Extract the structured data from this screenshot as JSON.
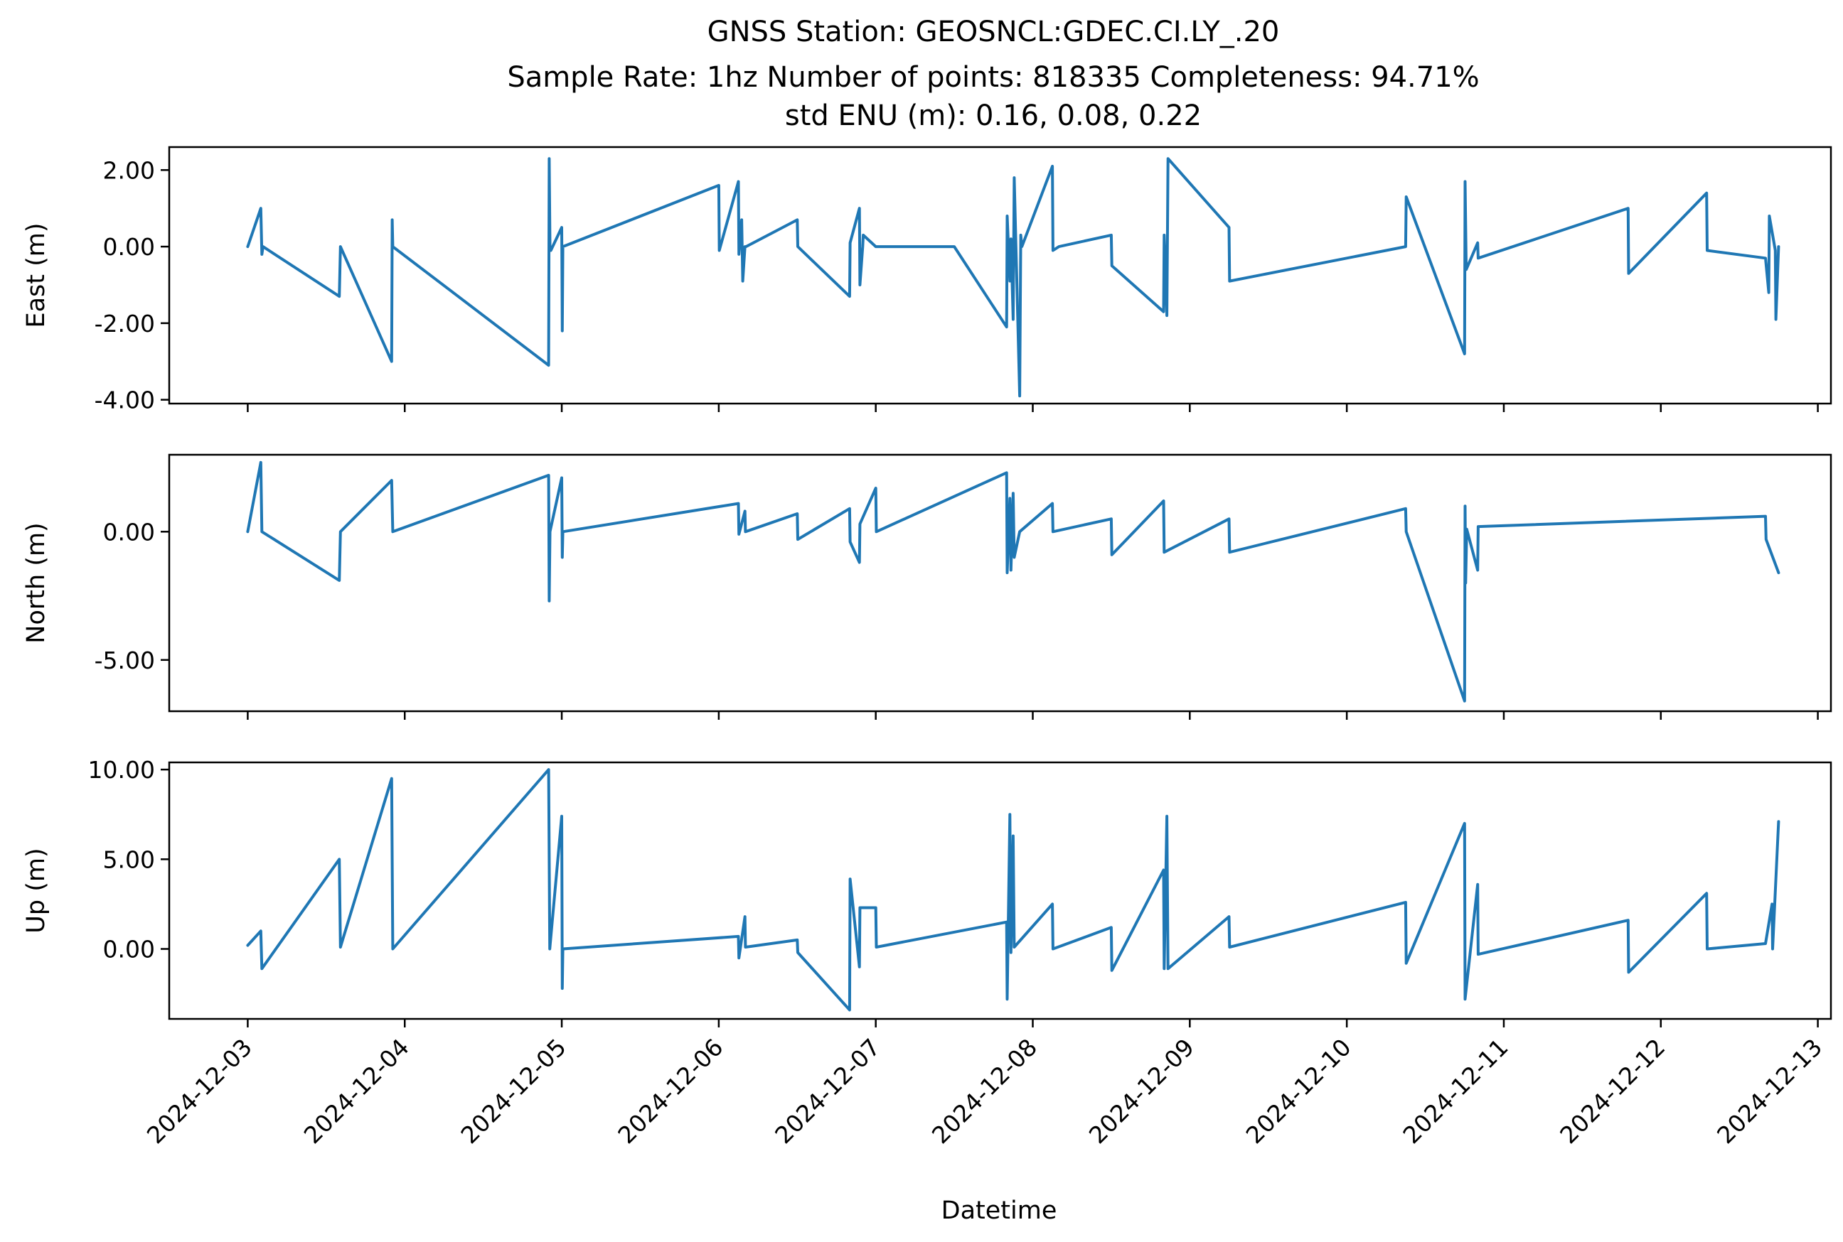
{
  "title_lines": [
    "GNSS Station: GEOSNCL:GDEC.CI.LY_.20",
    "Sample Rate: 1hz   Number of points: 818335    Completeness:  94.71%",
    "std ENU (m):  0.16, 0.08, 0.22"
  ],
  "xlabel": "Datetime",
  "colors": {
    "series": "#1f77b4",
    "axes": "#000000"
  },
  "chart_data": {
    "type": "line",
    "x_unit": "days",
    "xlim": [
      "2024-12-02 12:00",
      "2024-12-13 02:00"
    ],
    "x_ticks": [
      "2024-12-03",
      "2024-12-04",
      "2024-12-05",
      "2024-12-06",
      "2024-12-07",
      "2024-12-08",
      "2024-12-09",
      "2024-12-10",
      "2024-12-11",
      "2024-12-12",
      "2024-12-13"
    ],
    "panels": [
      {
        "ylabel": "East (m)",
        "ylim": [
          -4.1,
          2.6
        ],
        "yticks": [
          2.0,
          0.0,
          -2.0,
          -4.0
        ],
        "ytick_labels": [
          "2.00",
          "0.00",
          "-2.00",
          "-4.00"
        ],
        "series": [
          {
            "name": "",
            "x": [
              "2024-12-03 00:00",
              "2024-12-03 02:00",
              "2024-12-03 02:10",
              "2024-12-03 02:20",
              "2024-12-03 14:00",
              "2024-12-03 14:10",
              "2024-12-03 22:00",
              "2024-12-03 22:05",
              "2024-12-03 22:10",
              "2024-12-04 22:00",
              "2024-12-04 22:05",
              "2024-12-04 22:12",
              "2024-12-04 22:20",
              "2024-12-05 00:00",
              "2024-12-05 00:05",
              "2024-12-05 00:10",
              "2024-12-06 00:00",
              "2024-12-06 00:05",
              "2024-12-06 03:00",
              "2024-12-06 03:05",
              "2024-12-06 03:30",
              "2024-12-06 03:40",
              "2024-12-06 04:00",
              "2024-12-06 04:10",
              "2024-12-06 12:00",
              "2024-12-06 12:05",
              "2024-12-06 20:00",
              "2024-12-06 20:05",
              "2024-12-06 21:30",
              "2024-12-06 21:35",
              "2024-12-06 22:00",
              "2024-12-06 22:05",
              "2024-12-07 00:00",
              "2024-12-07 12:00",
              "2024-12-07 20:00",
              "2024-12-07 20:05",
              "2024-12-07 20:30",
              "2024-12-07 20:40",
              "2024-12-07 21:00",
              "2024-12-07 21:10",
              "2024-12-07 22:00",
              "2024-12-07 22:10",
              "2024-12-07 22:20",
              "2024-12-08 03:00",
              "2024-12-08 03:05",
              "2024-12-08 04:00",
              "2024-12-08 12:00",
              "2024-12-08 12:05",
              "2024-12-08 20:00",
              "2024-12-08 20:05",
              "2024-12-08 20:30",
              "2024-12-08 20:40",
              "2024-12-09 06:00",
              "2024-12-09 06:05",
              "2024-12-10 09:00",
              "2024-12-10 09:05",
              "2024-12-10 18:00",
              "2024-12-10 18:05",
              "2024-12-10 18:15",
              "2024-12-10 20:00",
              "2024-12-10 20:05",
              "2024-12-11 19:00",
              "2024-12-11 19:05",
              "2024-12-12 07:00",
              "2024-12-12 07:05",
              "2024-12-12 16:00",
              "2024-12-12 16:30",
              "2024-12-12 16:35",
              "2024-12-12 17:30",
              "2024-12-12 17:35",
              "2024-12-12 18:00"
            ],
            "values": [
              0.0,
              1.0,
              -0.2,
              0.0,
              -1.3,
              0.0,
              -3.0,
              0.7,
              0.0,
              -3.1,
              2.3,
              0.0,
              -0.1,
              0.5,
              -2.2,
              0.0,
              1.6,
              -0.1,
              1.7,
              -0.2,
              0.7,
              -0.9,
              0.0,
              0.0,
              0.7,
              0.0,
              -1.3,
              0.1,
              1.0,
              -1.0,
              0.0,
              0.3,
              0.0,
              0.0,
              -2.1,
              0.8,
              -0.9,
              0.2,
              -1.9,
              1.8,
              -3.9,
              0.3,
              0.0,
              2.1,
              -0.1,
              0.0,
              0.3,
              -0.5,
              -1.7,
              0.3,
              -1.8,
              2.3,
              0.5,
              -0.9,
              0.0,
              1.3,
              -2.8,
              1.7,
              -0.6,
              0.1,
              -0.3,
              1.0,
              -0.7,
              1.4,
              -0.1,
              -0.3,
              -1.2,
              0.8,
              -0.1,
              -1.9,
              0.0
            ]
          }
        ]
      },
      {
        "ylabel": "North (m)",
        "ylim": [
          -7.0,
          3.0
        ],
        "yticks": [
          0.0,
          -5.0
        ],
        "ytick_labels": [
          "0.00",
          "-5.00"
        ],
        "series": [
          {
            "name": "",
            "x": [
              "2024-12-03 00:00",
              "2024-12-03 02:00",
              "2024-12-03 02:10",
              "2024-12-03 14:00",
              "2024-12-03 14:10",
              "2024-12-03 22:00",
              "2024-12-03 22:10",
              "2024-12-04 22:00",
              "2024-12-04 22:05",
              "2024-12-04 22:12",
              "2024-12-05 00:00",
              "2024-12-05 00:05",
              "2024-12-05 00:10",
              "2024-12-06 03:00",
              "2024-12-06 03:05",
              "2024-12-06 04:00",
              "2024-12-06 04:05",
              "2024-12-06 12:00",
              "2024-12-06 12:05",
              "2024-12-06 20:00",
              "2024-12-06 20:05",
              "2024-12-06 21:30",
              "2024-12-06 21:35",
              "2024-12-07 00:00",
              "2024-12-07 00:05",
              "2024-12-07 20:00",
              "2024-12-07 20:05",
              "2024-12-07 20:30",
              "2024-12-07 20:40",
              "2024-12-07 21:00",
              "2024-12-07 21:10",
              "2024-12-07 22:00",
              "2024-12-08 03:00",
              "2024-12-08 03:05",
              "2024-12-08 12:00",
              "2024-12-08 12:05",
              "2024-12-08 20:00",
              "2024-12-08 20:05",
              "2024-12-09 06:00",
              "2024-12-09 06:05",
              "2024-12-10 09:00",
              "2024-12-10 09:05",
              "2024-12-10 18:00",
              "2024-12-10 18:05",
              "2024-12-10 18:10",
              "2024-12-10 18:20",
              "2024-12-10 20:00",
              "2024-12-10 20:05",
              "2024-12-12 16:00",
              "2024-12-12 16:05",
              "2024-12-12 18:00"
            ],
            "values": [
              0.0,
              2.7,
              0.0,
              -1.9,
              0.0,
              2.0,
              0.0,
              2.2,
              -2.7,
              0.0,
              2.1,
              -1.0,
              0.0,
              1.1,
              -0.1,
              0.8,
              0.0,
              0.7,
              -0.3,
              0.9,
              -0.4,
              -1.2,
              0.3,
              1.7,
              0.0,
              2.3,
              -1.6,
              1.3,
              -1.5,
              1.5,
              -1.0,
              0.0,
              1.1,
              0.0,
              0.5,
              -0.9,
              1.2,
              -0.8,
              0.5,
              -0.8,
              0.9,
              0.0,
              -6.6,
              1.0,
              -2.0,
              0.1,
              -1.5,
              0.2,
              0.6,
              -0.3,
              -1.6
            ]
          }
        ]
      },
      {
        "ylabel": "Up (m)",
        "ylim": [
          -3.9,
          10.4
        ],
        "yticks": [
          10.0,
          5.0,
          0.0
        ],
        "ytick_labels": [
          "10.00",
          "5.00",
          "0.00"
        ],
        "series": [
          {
            "name": "",
            "x": [
              "2024-12-03 00:00",
              "2024-12-03 02:00",
              "2024-12-03 02:10",
              "2024-12-03 14:00",
              "2024-12-03 14:10",
              "2024-12-03 22:00",
              "2024-12-03 22:10",
              "2024-12-04 22:00",
              "2024-12-04 22:10",
              "2024-12-05 00:00",
              "2024-12-05 00:05",
              "2024-12-05 00:10",
              "2024-12-06 03:00",
              "2024-12-06 03:05",
              "2024-12-06 04:00",
              "2024-12-06 04:05",
              "2024-12-06 12:00",
              "2024-12-06 12:05",
              "2024-12-06 20:00",
              "2024-12-06 20:05",
              "2024-12-06 21:30",
              "2024-12-06 21:35",
              "2024-12-07 00:00",
              "2024-12-07 00:05",
              "2024-12-07 20:00",
              "2024-12-07 20:05",
              "2024-12-07 20:30",
              "2024-12-07 20:40",
              "2024-12-07 21:00",
              "2024-12-07 21:10",
              "2024-12-08 03:00",
              "2024-12-08 03:05",
              "2024-12-08 12:00",
              "2024-12-08 12:05",
              "2024-12-08 20:00",
              "2024-12-08 20:05",
              "2024-12-08 20:30",
              "2024-12-08 20:40",
              "2024-12-09 06:00",
              "2024-12-09 06:05",
              "2024-12-10 09:00",
              "2024-12-10 09:05",
              "2024-12-10 18:00",
              "2024-12-10 18:05",
              "2024-12-10 20:00",
              "2024-12-10 20:05",
              "2024-12-11 19:00",
              "2024-12-11 19:05",
              "2024-12-12 07:00",
              "2024-12-12 07:05",
              "2024-12-12 16:00",
              "2024-12-12 17:00",
              "2024-12-12 17:05",
              "2024-12-12 18:00"
            ],
            "values": [
              0.2,
              1.0,
              -1.1,
              5.0,
              0.1,
              9.5,
              0.0,
              10.0,
              0.0,
              7.4,
              -2.2,
              0.0,
              0.7,
              -0.5,
              1.8,
              0.1,
              0.5,
              -0.2,
              -3.4,
              3.9,
              -1.0,
              2.3,
              2.3,
              0.1,
              1.5,
              -2.8,
              7.5,
              -0.2,
              6.3,
              0.1,
              2.5,
              0.0,
              1.2,
              -1.2,
              4.4,
              -1.1,
              7.4,
              -1.1,
              1.8,
              0.1,
              2.6,
              -0.8,
              7.0,
              -2.8,
              3.6,
              -0.3,
              1.6,
              -1.3,
              3.1,
              0.0,
              0.3,
              2.5,
              0.0,
              7.1
            ]
          }
        ]
      }
    ]
  }
}
